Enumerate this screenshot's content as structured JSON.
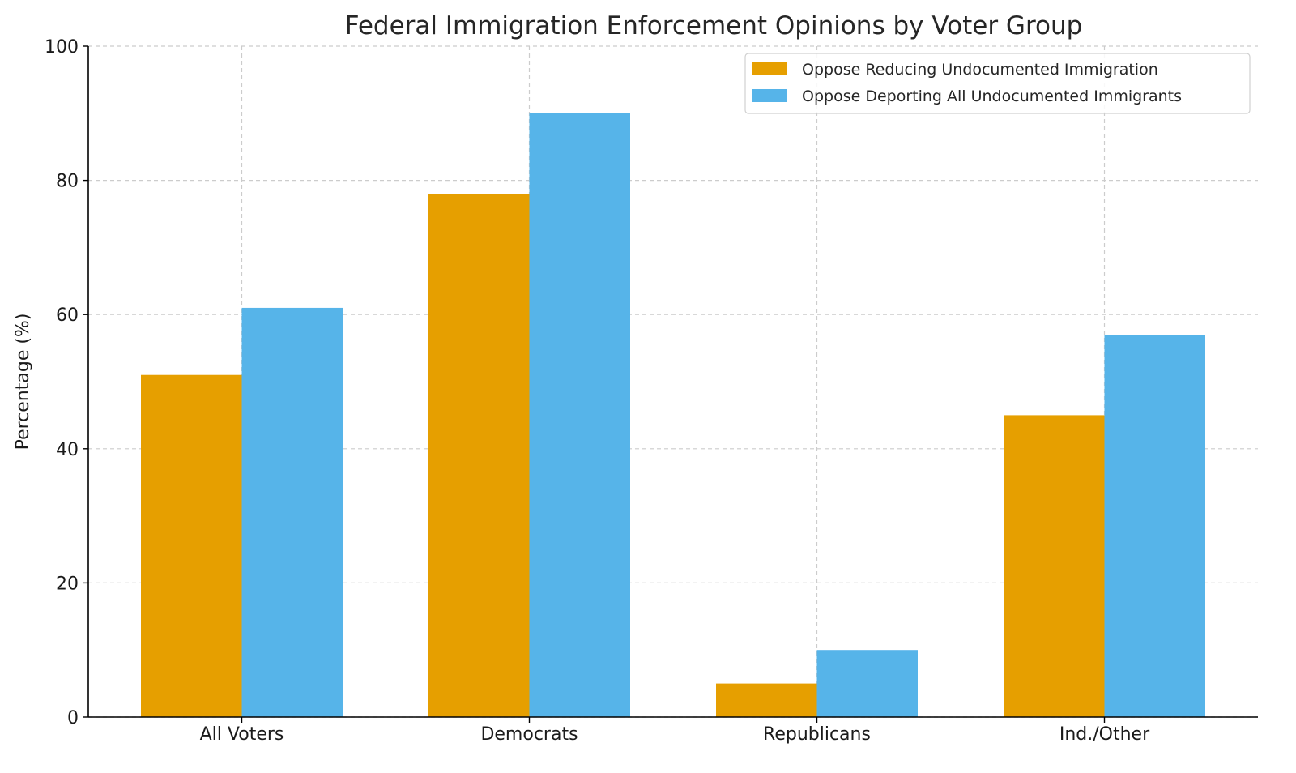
{
  "chart_data": {
    "type": "bar",
    "title": "Federal Immigration Enforcement Opinions by Voter Group",
    "xlabel": "",
    "ylabel": "Percentage (%)",
    "categories": [
      "All Voters",
      "Democrats",
      "Republicans",
      "Ind./Other"
    ],
    "series": [
      {
        "name": "Oppose Reducing Undocumented Immigration",
        "color": "#E69F00",
        "values": [
          51,
          78,
          5,
          45
        ]
      },
      {
        "name": "Oppose Deporting All Undocumented Immigrants",
        "color": "#56B4E9",
        "values": [
          61,
          90,
          10,
          57
        ]
      }
    ],
    "ylim": [
      0,
      100
    ],
    "yticks": [
      0,
      20,
      40,
      60,
      80,
      100
    ],
    "grid": true,
    "legend_position": "top-right"
  }
}
